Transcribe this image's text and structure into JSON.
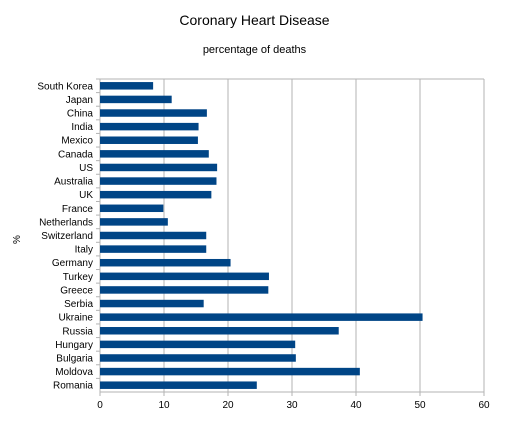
{
  "chart_data": {
    "type": "bar",
    "orientation": "horizontal",
    "title": "Coronary Heart Disease",
    "subtitle": "percentage of deaths",
    "xlabel": "",
    "ylabel": "%",
    "xlim": [
      0,
      60
    ],
    "xticks": [
      "0",
      "10",
      "20",
      "30",
      "40",
      "50",
      "60"
    ],
    "grid": true,
    "bar_color": "#004586",
    "categories": [
      "South Korea",
      "Japan",
      "China",
      "India",
      "Mexico",
      "Canada",
      "US",
      "Australia",
      "UK",
      "France",
      "Netherlands",
      "Switzerland",
      "Italy",
      "Germany",
      "Turkey",
      "Greece",
      "Serbia",
      "Ukraine",
      "Russia",
      "Hungary",
      "Bulgaria",
      "Moldova",
      "Romania"
    ],
    "values": [
      8.3,
      11.2,
      16.7,
      15.4,
      15.3,
      17.0,
      18.3,
      18.2,
      17.4,
      9.9,
      10.6,
      16.6,
      16.6,
      20.4,
      26.4,
      26.3,
      16.2,
      50.4,
      37.3,
      30.5,
      30.6,
      40.6,
      24.5
    ]
  }
}
